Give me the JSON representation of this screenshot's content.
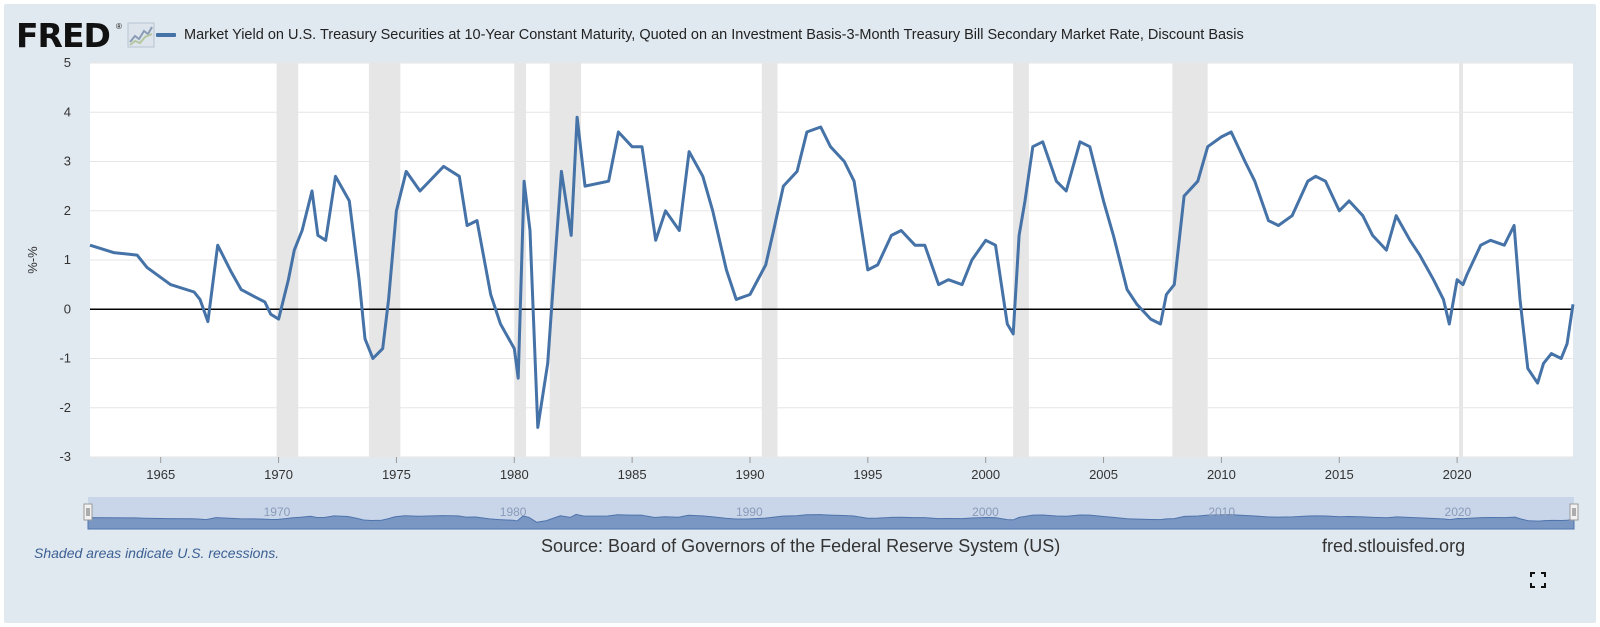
{
  "app": {
    "logo_text": "FRED",
    "logo_mark": "®",
    "logo_icon": "line-chart-icon"
  },
  "chart_data": {
    "type": "line",
    "title": "",
    "xlabel": "",
    "ylabel": "%-%",
    "x_range": [
      "1962-01",
      "2024-12"
    ],
    "ylim": [
      -3,
      5
    ],
    "yticks": [
      5,
      4,
      3,
      2,
      1,
      0,
      -1,
      -2,
      -3
    ],
    "xticks": [
      "1965",
      "1970",
      "1975",
      "1980",
      "1985",
      "1990",
      "1995",
      "2000",
      "2005",
      "2010",
      "2015",
      "2020"
    ],
    "grid": true,
    "legend_position": "top",
    "series": [
      {
        "name": "Market Yield on U.S. Treasury Securities at 10-Year Constant Maturity, Quoted on an Investment Basis-3-Month Treasury Bill Secondary Market Rate, Discount Basis",
        "color": "#4572a7",
        "x": [
          "1962-01",
          "1963-01",
          "1964-01",
          "1964-06",
          "1965-06",
          "1966-06",
          "1966-09",
          "1967-01",
          "1967-06",
          "1968-01",
          "1968-06",
          "1969-01",
          "1969-06",
          "1969-09",
          "1970-01",
          "1970-06",
          "1970-09",
          "1971-01",
          "1971-06",
          "1971-09",
          "1972-01",
          "1972-06",
          "1973-01",
          "1973-06",
          "1973-09",
          "1974-01",
          "1974-06",
          "1974-09",
          "1975-01",
          "1975-06",
          "1976-01",
          "1977-01",
          "1977-09",
          "1978-01",
          "1978-06",
          "1979-01",
          "1979-06",
          "1980-01",
          "1980-03",
          "1980-06",
          "1980-09",
          "1981-01",
          "1981-06",
          "1981-09",
          "1982-01",
          "1982-06",
          "1982-09",
          "1983-01",
          "1984-01",
          "1984-06",
          "1985-01",
          "1985-06",
          "1986-01",
          "1986-06",
          "1987-01",
          "1987-06",
          "1988-01",
          "1988-06",
          "1989-01",
          "1989-06",
          "1990-01",
          "1990-09",
          "1991-01",
          "1991-06",
          "1992-01",
          "1992-06",
          "1993-01",
          "1993-06",
          "1994-01",
          "1994-06",
          "1995-01",
          "1995-06",
          "1996-01",
          "1996-06",
          "1997-01",
          "1997-06",
          "1998-01",
          "1998-06",
          "1999-01",
          "1999-06",
          "2000-01",
          "2000-06",
          "2000-12",
          "2001-03",
          "2001-06",
          "2001-09",
          "2002-01",
          "2002-06",
          "2003-01",
          "2003-06",
          "2004-01",
          "2004-06",
          "2005-01",
          "2005-06",
          "2006-01",
          "2006-06",
          "2007-01",
          "2007-06",
          "2007-09",
          "2008-01",
          "2008-06",
          "2009-01",
          "2009-06",
          "2010-01",
          "2010-06",
          "2011-01",
          "2011-06",
          "2012-01",
          "2012-06",
          "2013-01",
          "2013-09",
          "2014-01",
          "2014-06",
          "2015-01",
          "2015-06",
          "2016-01",
          "2016-06",
          "2017-01",
          "2017-06",
          "2018-01",
          "2018-06",
          "2019-01",
          "2019-06",
          "2019-09",
          "2020-01",
          "2020-04",
          "2020-06",
          "2021-01",
          "2021-06",
          "2022-01",
          "2022-06",
          "2022-09",
          "2023-01",
          "2023-06",
          "2023-09",
          "2024-01",
          "2024-06",
          "2024-09",
          "2024-12"
        ],
        "y": [
          1.3,
          1.15,
          1.1,
          0.85,
          0.5,
          0.35,
          0.2,
          -0.25,
          1.3,
          0.75,
          0.4,
          0.25,
          0.15,
          -0.1,
          -0.2,
          0.6,
          1.2,
          1.6,
          2.4,
          1.5,
          1.4,
          2.7,
          2.2,
          0.6,
          -0.6,
          -1.0,
          -0.8,
          0.2,
          2.0,
          2.8,
          2.4,
          2.9,
          2.7,
          1.7,
          1.8,
          0.3,
          -0.3,
          -0.8,
          -1.4,
          2.6,
          1.6,
          -2.4,
          -1.1,
          0.6,
          2.8,
          1.5,
          3.9,
          2.5,
          2.6,
          3.6,
          3.3,
          3.3,
          1.4,
          2.0,
          1.6,
          3.2,
          2.7,
          2.0,
          0.8,
          0.2,
          0.3,
          0.9,
          1.6,
          2.5,
          2.8,
          3.6,
          3.7,
          3.3,
          3.0,
          2.6,
          0.8,
          0.9,
          1.5,
          1.6,
          1.3,
          1.3,
          0.5,
          0.6,
          0.5,
          1.0,
          1.4,
          1.3,
          -0.3,
          -0.5,
          1.5,
          2.2,
          3.3,
          3.4,
          2.6,
          2.4,
          3.4,
          3.3,
          2.2,
          1.5,
          0.4,
          0.1,
          -0.2,
          -0.3,
          0.3,
          0.5,
          2.3,
          2.6,
          3.3,
          3.5,
          3.6,
          3.0,
          2.6,
          1.8,
          1.7,
          1.9,
          2.6,
          2.7,
          2.6,
          2.0,
          2.2,
          1.9,
          1.5,
          1.2,
          1.9,
          1.4,
          1.1,
          0.6,
          0.2,
          -0.3,
          0.6,
          0.5,
          0.7,
          1.3,
          1.4,
          1.3,
          1.7,
          0.2,
          -1.2,
          -1.5,
          -1.1,
          -0.9,
          -1.0,
          -0.7,
          0.1
        ]
      }
    ],
    "recessions": [
      [
        "1969-12",
        "1970-11"
      ],
      [
        "1973-11",
        "1975-03"
      ],
      [
        "1980-01",
        "1980-07"
      ],
      [
        "1981-07",
        "1982-11"
      ],
      [
        "1990-07",
        "1991-03"
      ],
      [
        "2001-03",
        "2001-11"
      ],
      [
        "2007-12",
        "2009-06"
      ],
      [
        "2020-02",
        "2020-04"
      ]
    ],
    "navigator_labels": [
      "1970",
      "1980",
      "1990",
      "2000",
      "2010",
      "2020"
    ]
  },
  "footer": {
    "note": "Shaded areas indicate U.S. recessions.",
    "source": "Source: Board of Governors of the Federal Reserve System (US)",
    "site": "fred.stlouisfed.org"
  },
  "controls": {
    "fullscreen_icon": "fullscreen-icon",
    "navigator_handle_icon": "drag-handle-icon"
  },
  "colors": {
    "frame": "#e1e9f0",
    "line": "#4572a7",
    "recession": "#e6e6e6",
    "navigator_fill": "#6f8fbf"
  }
}
